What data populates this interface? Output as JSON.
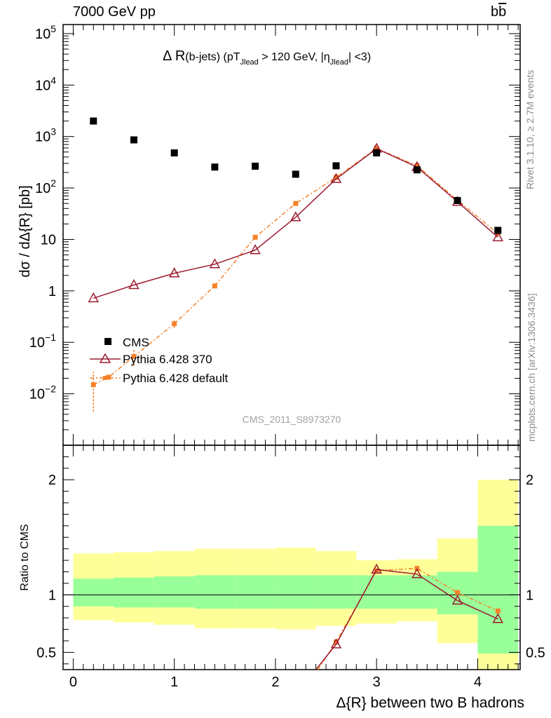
{
  "header": {
    "left": "7000 GeV pp",
    "right_b": "b",
    "right_bbar": "b"
  },
  "side_labels": {
    "rivet": "Rivet 3.1.10, ≥ 2.7M events",
    "mcplots": "mcplots.cern.ch [arXiv:1306.3436]"
  },
  "colors": {
    "cms": "#000000",
    "pythia370": "#9b1b30",
    "pythia_default": "#f5822a",
    "band_inner": "#99ff99",
    "band_outer": "#ffff99",
    "watermark": "#a0a0a0"
  },
  "chart_data": {
    "type": "scatter",
    "title_parts": {
      "main": "Δ R",
      "sub": "(b-jets) (pT",
      "jlead1": "Jlead",
      "cut": " > 120 GeV, |η",
      "jlead2": "Jlead",
      "end": "| <3)"
    },
    "watermark": "CMS_2011_S8973270",
    "ylabel": "dσ / dΔ{R} [pb]",
    "ylabel_ratio": "Ratio to CMS",
    "xlabel": "Δ{R} between two B hadrons",
    "xlim": [
      -0.1,
      4.42
    ],
    "ylim": [
      0.001,
      150000
    ],
    "yscale": "log",
    "ratio_ylim": [
      0.35,
      2.3
    ],
    "x_ticks": [
      0,
      1,
      2,
      3,
      4
    ],
    "x_tick_labels": [
      "0",
      "1",
      "2",
      "3",
      "4"
    ],
    "y_ticks": [
      0.01,
      0.1,
      1,
      10,
      100,
      1000,
      10000,
      100000
    ],
    "y_tick_labels": [
      {
        "base": "10",
        "exp": "−2"
      },
      {
        "base": "10",
        "exp": "−1"
      },
      {
        "base": "1",
        "exp": ""
      },
      {
        "base": "10",
        "exp": ""
      },
      {
        "base": "10",
        "exp": "2"
      },
      {
        "base": "10",
        "exp": "3"
      },
      {
        "base": "10",
        "exp": "4"
      },
      {
        "base": "10",
        "exp": "5"
      }
    ],
    "ratio_ticks": [
      0.5,
      1,
      2
    ],
    "ratio_tick_labels": [
      "0.5",
      "1",
      "2"
    ],
    "bin_edges": [
      0,
      0.4,
      0.8,
      1.2,
      1.6,
      2.0,
      2.4,
      2.8,
      3.2,
      3.6,
      4.0,
      4.4
    ],
    "legend": {
      "position": "lower-left",
      "entries": [
        "CMS",
        "Pythia 6.428 370",
        "Pythia 6.428 default"
      ]
    },
    "series": [
      {
        "name": "CMS",
        "style": "square",
        "x": [
          0.2,
          0.6,
          1.0,
          1.4,
          1.8,
          2.2,
          2.6,
          3.0,
          3.4,
          3.8,
          4.2
        ],
        "y": [
          2000,
          860,
          480,
          255,
          265,
          185,
          270,
          480,
          225,
          57,
          15
        ]
      },
      {
        "name": "Pythia 6.428 370",
        "style": "triangle-line",
        "x": [
          0.2,
          0.6,
          1.0,
          1.4,
          1.8,
          2.2,
          2.6,
          3.0,
          3.4,
          3.8,
          4.2
        ],
        "y": [
          0.72,
          1.3,
          2.2,
          3.3,
          6.2,
          27,
          150,
          580,
          255,
          54,
          11
        ]
      },
      {
        "name": "Pythia 6.428 default",
        "style": "smallsquare-dashdot",
        "x": [
          0.2,
          0.35,
          0.6,
          1.0,
          1.4,
          1.8,
          2.2,
          2.6,
          3.0,
          3.4,
          3.8,
          4.2
        ],
        "y": [
          0.015,
          0.021,
          0.053,
          0.23,
          1.25,
          11,
          50,
          160,
          590,
          270,
          58,
          13
        ],
        "err_low": [
          0.0045,
          null,
          0.035,
          0.19,
          null,
          null,
          null,
          null,
          null,
          null,
          null,
          null
        ],
        "err_high": [
          0.027,
          null,
          0.075,
          0.27,
          null,
          null,
          null,
          null,
          null,
          null,
          null,
          null
        ]
      }
    ],
    "ratio_series": [
      {
        "name": "Pythia 6.428 370",
        "x": [
          2.4,
          2.6,
          3.0,
          3.4,
          3.8,
          4.2
        ],
        "y": [
          0.35,
          0.57,
          1.22,
          1.18,
          0.95,
          0.79
        ]
      },
      {
        "name": "Pythia 6.428 default",
        "x": [
          2.42,
          2.6,
          3.0,
          3.4,
          3.8,
          4.2
        ],
        "y": [
          0.35,
          0.59,
          1.21,
          1.23,
          1.02,
          0.86
        ]
      }
    ],
    "ratio_bands": {
      "inner_low": [
        0.9,
        0.89,
        0.89,
        0.88,
        0.88,
        0.88,
        0.88,
        0.88,
        0.88,
        0.83,
        0.49
      ],
      "inner_high": [
        1.14,
        1.15,
        1.16,
        1.17,
        1.17,
        1.17,
        1.17,
        1.17,
        1.17,
        1.2,
        1.6
      ],
      "outer_low": [
        0.78,
        0.76,
        0.74,
        0.71,
        0.71,
        0.7,
        0.73,
        0.75,
        0.77,
        0.58,
        0.35
      ],
      "outer_high": [
        1.36,
        1.37,
        1.38,
        1.4,
        1.4,
        1.41,
        1.38,
        1.3,
        1.31,
        1.49,
        2.0
      ]
    }
  }
}
